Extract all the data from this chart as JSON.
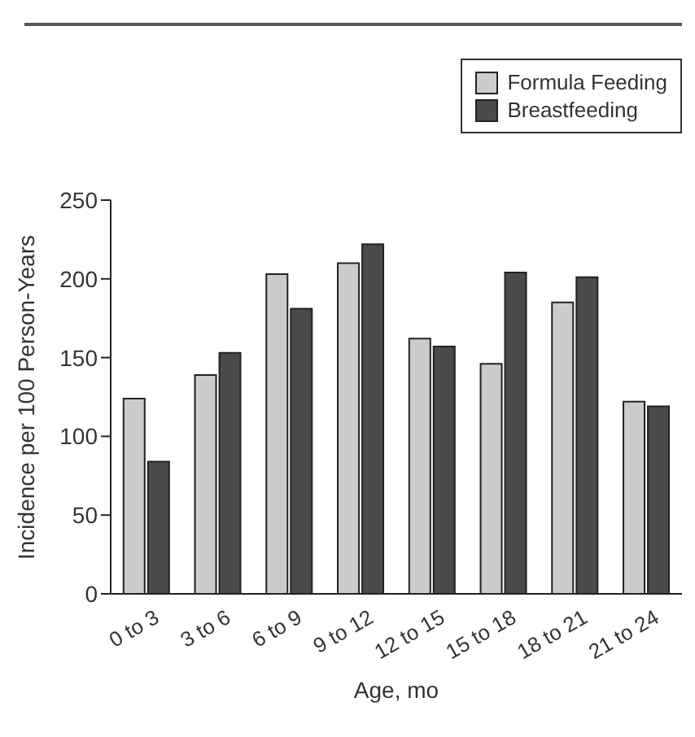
{
  "chart_data": {
    "type": "bar",
    "xlabel": "Age, mo",
    "ylabel": "Incidence per 100 Person-Years",
    "categories": [
      "0 to 3",
      "3 to 6",
      "6 to 9",
      "9 to 12",
      "12 to 15",
      "15 to 18",
      "18 to 21",
      "21 to 24"
    ],
    "series": [
      {
        "name": "Formula Feeding",
        "color": "#cccccc",
        "values": [
          124,
          139,
          203,
          210,
          162,
          146,
          185,
          122
        ]
      },
      {
        "name": "Breastfeeding",
        "color": "#4a4a4a",
        "values": [
          84,
          153,
          181,
          222,
          157,
          204,
          201,
          119
        ]
      }
    ],
    "ylim": [
      0,
      250
    ],
    "yticks": [
      0,
      50,
      100,
      150,
      200,
      250
    ],
    "grid": false,
    "legend": "top right"
  }
}
